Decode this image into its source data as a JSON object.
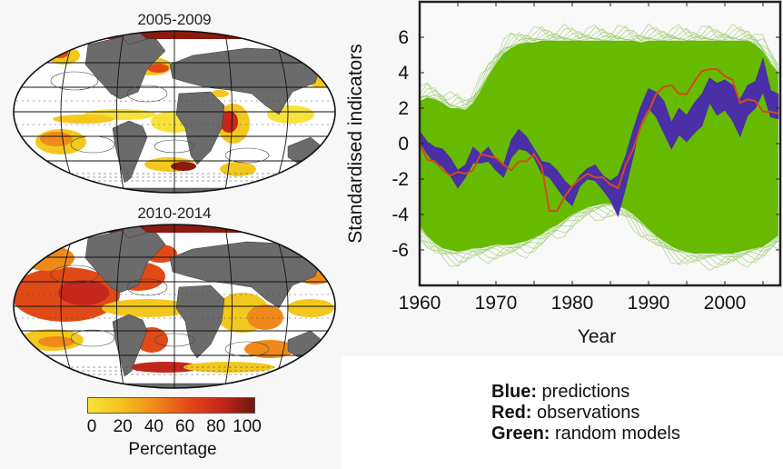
{
  "maps": {
    "panels": [
      {
        "title": "2005-2009"
      },
      {
        "title": "2010-2014"
      }
    ],
    "colorbar": {
      "label": "Percentage",
      "ticks": [
        "0",
        "20",
        "40",
        "60",
        "80",
        "100"
      ],
      "colors": [
        "#f7e23a",
        "#f6c21e",
        "#ef8a1a",
        "#e54a17",
        "#c7261a",
        "#6e1710"
      ]
    },
    "colors": {
      "land": "#6b6b6b",
      "ocean": "#ffffff",
      "grid": "#111111"
    }
  },
  "legend": {
    "items": [
      {
        "key": "Blue:",
        "text": " predictions",
        "color": "#4b2fa6"
      },
      {
        "key": "Red:",
        "text": " observations",
        "color": "#d24a1c"
      },
      {
        "key": "Green:",
        "text": " random models",
        "color": "#66bb00"
      }
    ]
  },
  "chart_data": {
    "type": "line",
    "title": "",
    "xlabel": "Year",
    "ylabel": "Standardised indicators",
    "xlim": [
      1960,
      2007
    ],
    "ylim": [
      -8,
      8.2
    ],
    "xticks": [
      "1960",
      "1970",
      "1980",
      "1990",
      "2000"
    ],
    "xtick_values": [
      1960,
      1970,
      1980,
      1990,
      2000
    ],
    "yticks": [
      "6",
      "4",
      "2",
      "0",
      "-2",
      "-4",
      "-6"
    ],
    "ytick_values": [
      6,
      4,
      2,
      0,
      -2,
      -4,
      -6
    ],
    "grid": false,
    "x": [
      1960,
      1961,
      1962,
      1963,
      1964,
      1965,
      1966,
      1967,
      1968,
      1969,
      1970,
      1971,
      1972,
      1973,
      1974,
      1975,
      1976,
      1977,
      1978,
      1979,
      1980,
      1981,
      1982,
      1983,
      1984,
      1985,
      1986,
      1987,
      1988,
      1989,
      1990,
      1991,
      1992,
      1993,
      1994,
      1995,
      1996,
      1997,
      1998,
      1999,
      2000,
      2001,
      2002,
      2003,
      2004,
      2005,
      2006,
      2007
    ],
    "series": [
      {
        "name": "random models (envelope upper)",
        "color": "#66bb00",
        "values": [
          2.4,
          2.6,
          2.5,
          2.3,
          2.0,
          2.0,
          1.9,
          2.3,
          3.0,
          3.8,
          4.5,
          5.1,
          5.4,
          5.6,
          5.7,
          5.7,
          5.8,
          5.8,
          5.8,
          5.8,
          5.8,
          5.8,
          5.8,
          5.8,
          5.8,
          5.8,
          5.8,
          5.8,
          5.8,
          5.7,
          5.8,
          5.8,
          5.8,
          5.8,
          5.8,
          5.8,
          5.8,
          5.8,
          5.8,
          5.8,
          5.8,
          5.8,
          5.8,
          5.8,
          5.6,
          5.2,
          4.5,
          4.0
        ]
      },
      {
        "name": "random models (envelope lower)",
        "color": "#66bb00",
        "values": [
          -4.6,
          -5.2,
          -5.6,
          -5.9,
          -6.0,
          -6.1,
          -6.0,
          -5.9,
          -5.9,
          -5.8,
          -5.7,
          -5.7,
          -5.7,
          -5.6,
          -5.5,
          -5.3,
          -5.1,
          -4.8,
          -4.6,
          -4.3,
          -4.0,
          -3.8,
          -3.6,
          -3.5,
          -3.4,
          -3.4,
          -3.5,
          -3.7,
          -4.0,
          -4.4,
          -4.8,
          -5.2,
          -5.5,
          -5.8,
          -6.0,
          -6.1,
          -6.2,
          -6.2,
          -6.2,
          -6.2,
          -6.2,
          -6.2,
          -6.1,
          -6.0,
          -5.9,
          -5.8,
          -5.5,
          -5.2
        ]
      },
      {
        "name": "predictions (upper)",
        "color": "#4b2fa6",
        "values": [
          0.7,
          0.1,
          -0.2,
          -0.3,
          -0.8,
          -1.5,
          -1.2,
          -0.2,
          -0.6,
          -0.2,
          -0.9,
          -1.2,
          0.2,
          0.8,
          0.4,
          -0.3,
          -1.0,
          -1.1,
          -1.5,
          -2.1,
          -2.5,
          -1.8,
          -1.4,
          -1.2,
          -1.8,
          -2.1,
          -1.8,
          -0.7,
          0.8,
          2.1,
          3.1,
          2.9,
          2.4,
          1.2,
          2.0,
          1.6,
          2.3,
          2.8,
          3.7,
          3.4,
          3.6,
          3.3,
          2.5,
          3.3,
          3.5,
          4.8,
          3.0,
          2.8
        ]
      },
      {
        "name": "predictions (lower)",
        "color": "#4b2fa6",
        "values": [
          0.1,
          -0.6,
          -1.1,
          -1.3,
          -1.8,
          -2.5,
          -1.9,
          -1.1,
          -1.1,
          -1.0,
          -1.5,
          -1.9,
          -0.8,
          -0.3,
          -0.4,
          -0.8,
          -1.7,
          -1.9,
          -2.5,
          -3.1,
          -3.5,
          -2.4,
          -2.0,
          -2.1,
          -2.6,
          -3.2,
          -4.1,
          -2.5,
          -0.7,
          1.2,
          2.0,
          1.5,
          0.6,
          -0.3,
          0.5,
          0.1,
          0.6,
          1.0,
          2.3,
          1.6,
          1.9,
          1.3,
          0.4,
          1.6,
          2.0,
          2.9,
          1.5,
          1.4
        ]
      },
      {
        "name": "observations",
        "color": "#d24a1c",
        "values": [
          0.0,
          -0.9,
          -1.0,
          -1.5,
          -1.8,
          -1.6,
          -1.7,
          -1.5,
          -0.6,
          -0.7,
          -0.8,
          -1.2,
          -1.5,
          -1.0,
          -1.0,
          -0.6,
          -1.3,
          -3.8,
          -3.8,
          -3.0,
          -2.4,
          -2.0,
          -1.7,
          -1.9,
          -1.9,
          -2.3,
          -2.5,
          -1.2,
          -0.3,
          1.0,
          1.8,
          2.8,
          3.2,
          3.3,
          2.8,
          2.8,
          3.5,
          4.1,
          4.2,
          4.2,
          3.8,
          3.6,
          2.3,
          2.5,
          2.4,
          1.8,
          1.8,
          1.7
        ]
      }
    ]
  }
}
